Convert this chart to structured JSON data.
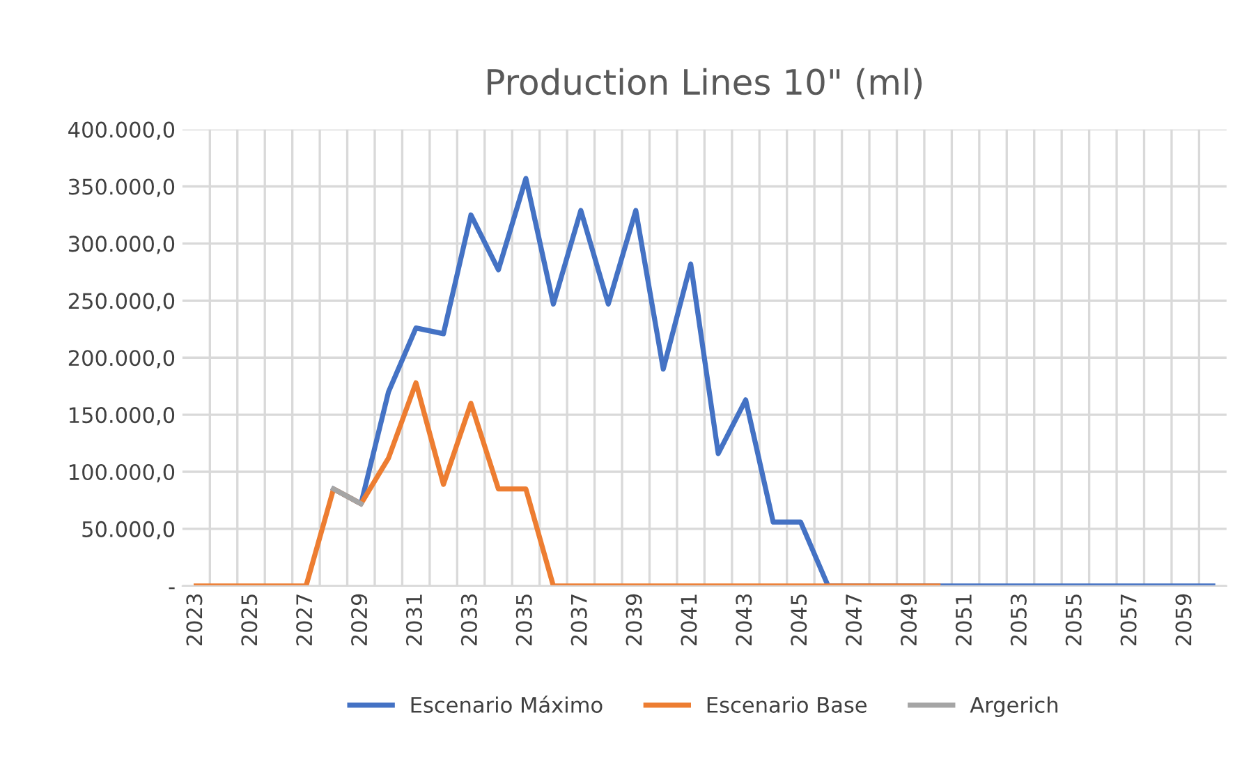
{
  "chart_data": {
    "type": "line",
    "title": "Production Lines 10\" (ml)",
    "categories": [
      "2023",
      null,
      "2025",
      null,
      "2027",
      null,
      "2029",
      null,
      "2031",
      null,
      "2033",
      null,
      "2035",
      null,
      "2037",
      null,
      "2039",
      null,
      "2041",
      null,
      "2043",
      null,
      "2045",
      null,
      "2047",
      null,
      "2049",
      null,
      "2051",
      null,
      "2053",
      null,
      "2055",
      null,
      "2057",
      null,
      "2059",
      null
    ],
    "series": [
      {
        "name": "Escenario Máximo",
        "color": "#4472c4",
        "values": [
          null,
          null,
          null,
          null,
          null,
          85000,
          72000,
          170000,
          226000,
          221000,
          325000,
          277000,
          357000,
          247000,
          329000,
          247000,
          329000,
          190000,
          282000,
          116000,
          163000,
          56000,
          56000,
          0,
          0,
          0,
          0,
          0,
          0,
          0,
          0,
          0,
          0,
          0,
          0,
          0,
          0,
          0
        ]
      },
      {
        "name": "Escenario Base",
        "color": "#ed7d31",
        "values": [
          0,
          0,
          0,
          0,
          0,
          85000,
          72000,
          112000,
          178000,
          89000,
          160000,
          85000,
          85000,
          0,
          0,
          0,
          0,
          0,
          0,
          0,
          0,
          0,
          0,
          0,
          0,
          0,
          0,
          0,
          null,
          null,
          null,
          null,
          null,
          null,
          null,
          null,
          null,
          null
        ]
      },
      {
        "name": "Argerich",
        "color": "#a5a5a5",
        "values": [
          null,
          null,
          null,
          null,
          null,
          85000,
          72000,
          null,
          null,
          null,
          null,
          null,
          null,
          null,
          null,
          null,
          null,
          null,
          null,
          null,
          null,
          null,
          null,
          null,
          null,
          null,
          null,
          null,
          null,
          null,
          null,
          null,
          null,
          null,
          null,
          null,
          null,
          null
        ]
      }
    ],
    "ylim": [
      0,
      400000
    ],
    "yticks": [
      {
        "value": 0,
        "label": "-"
      },
      {
        "value": 50000,
        "label": "50.000,0"
      },
      {
        "value": 100000,
        "label": "100.000,0"
      },
      {
        "value": 150000,
        "label": "150.000,0"
      },
      {
        "value": 200000,
        "label": "200.000,0"
      },
      {
        "value": 250000,
        "label": "250.000,0"
      },
      {
        "value": 300000,
        "label": "300.000,0"
      },
      {
        "value": 350000,
        "label": "350.000,0"
      },
      {
        "value": 400000,
        "label": "400.000,0"
      }
    ],
    "grid": true,
    "legend": "bottom",
    "marker": "none",
    "line_style": "solid"
  }
}
